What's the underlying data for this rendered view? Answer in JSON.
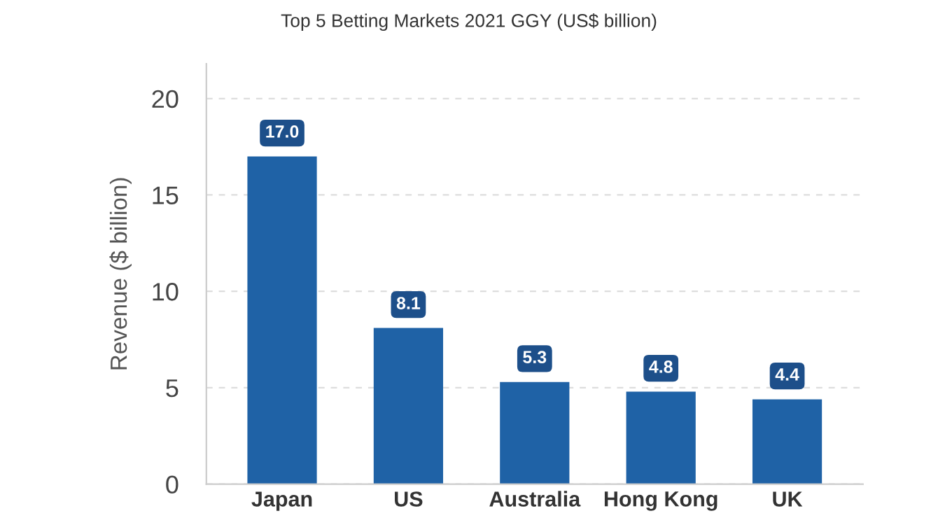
{
  "chart_data": {
    "type": "bar",
    "title": "Top 5 Betting Markets 2021 GGY (US$ billion)",
    "ylabel": "Revenue ($ billion)",
    "categories": [
      "Japan",
      "US",
      "Australia",
      "Hong Kong",
      "UK"
    ],
    "values": [
      17.0,
      8.1,
      5.3,
      4.8,
      4.4
    ],
    "value_labels": [
      "17.0",
      "8.1",
      "5.3",
      "4.8",
      "4.4"
    ],
    "color": "#1f62a6",
    "ylim": [
      0,
      21.8
    ],
    "yticks": [
      0,
      5,
      10,
      15,
      20
    ],
    "grid": "y"
  }
}
